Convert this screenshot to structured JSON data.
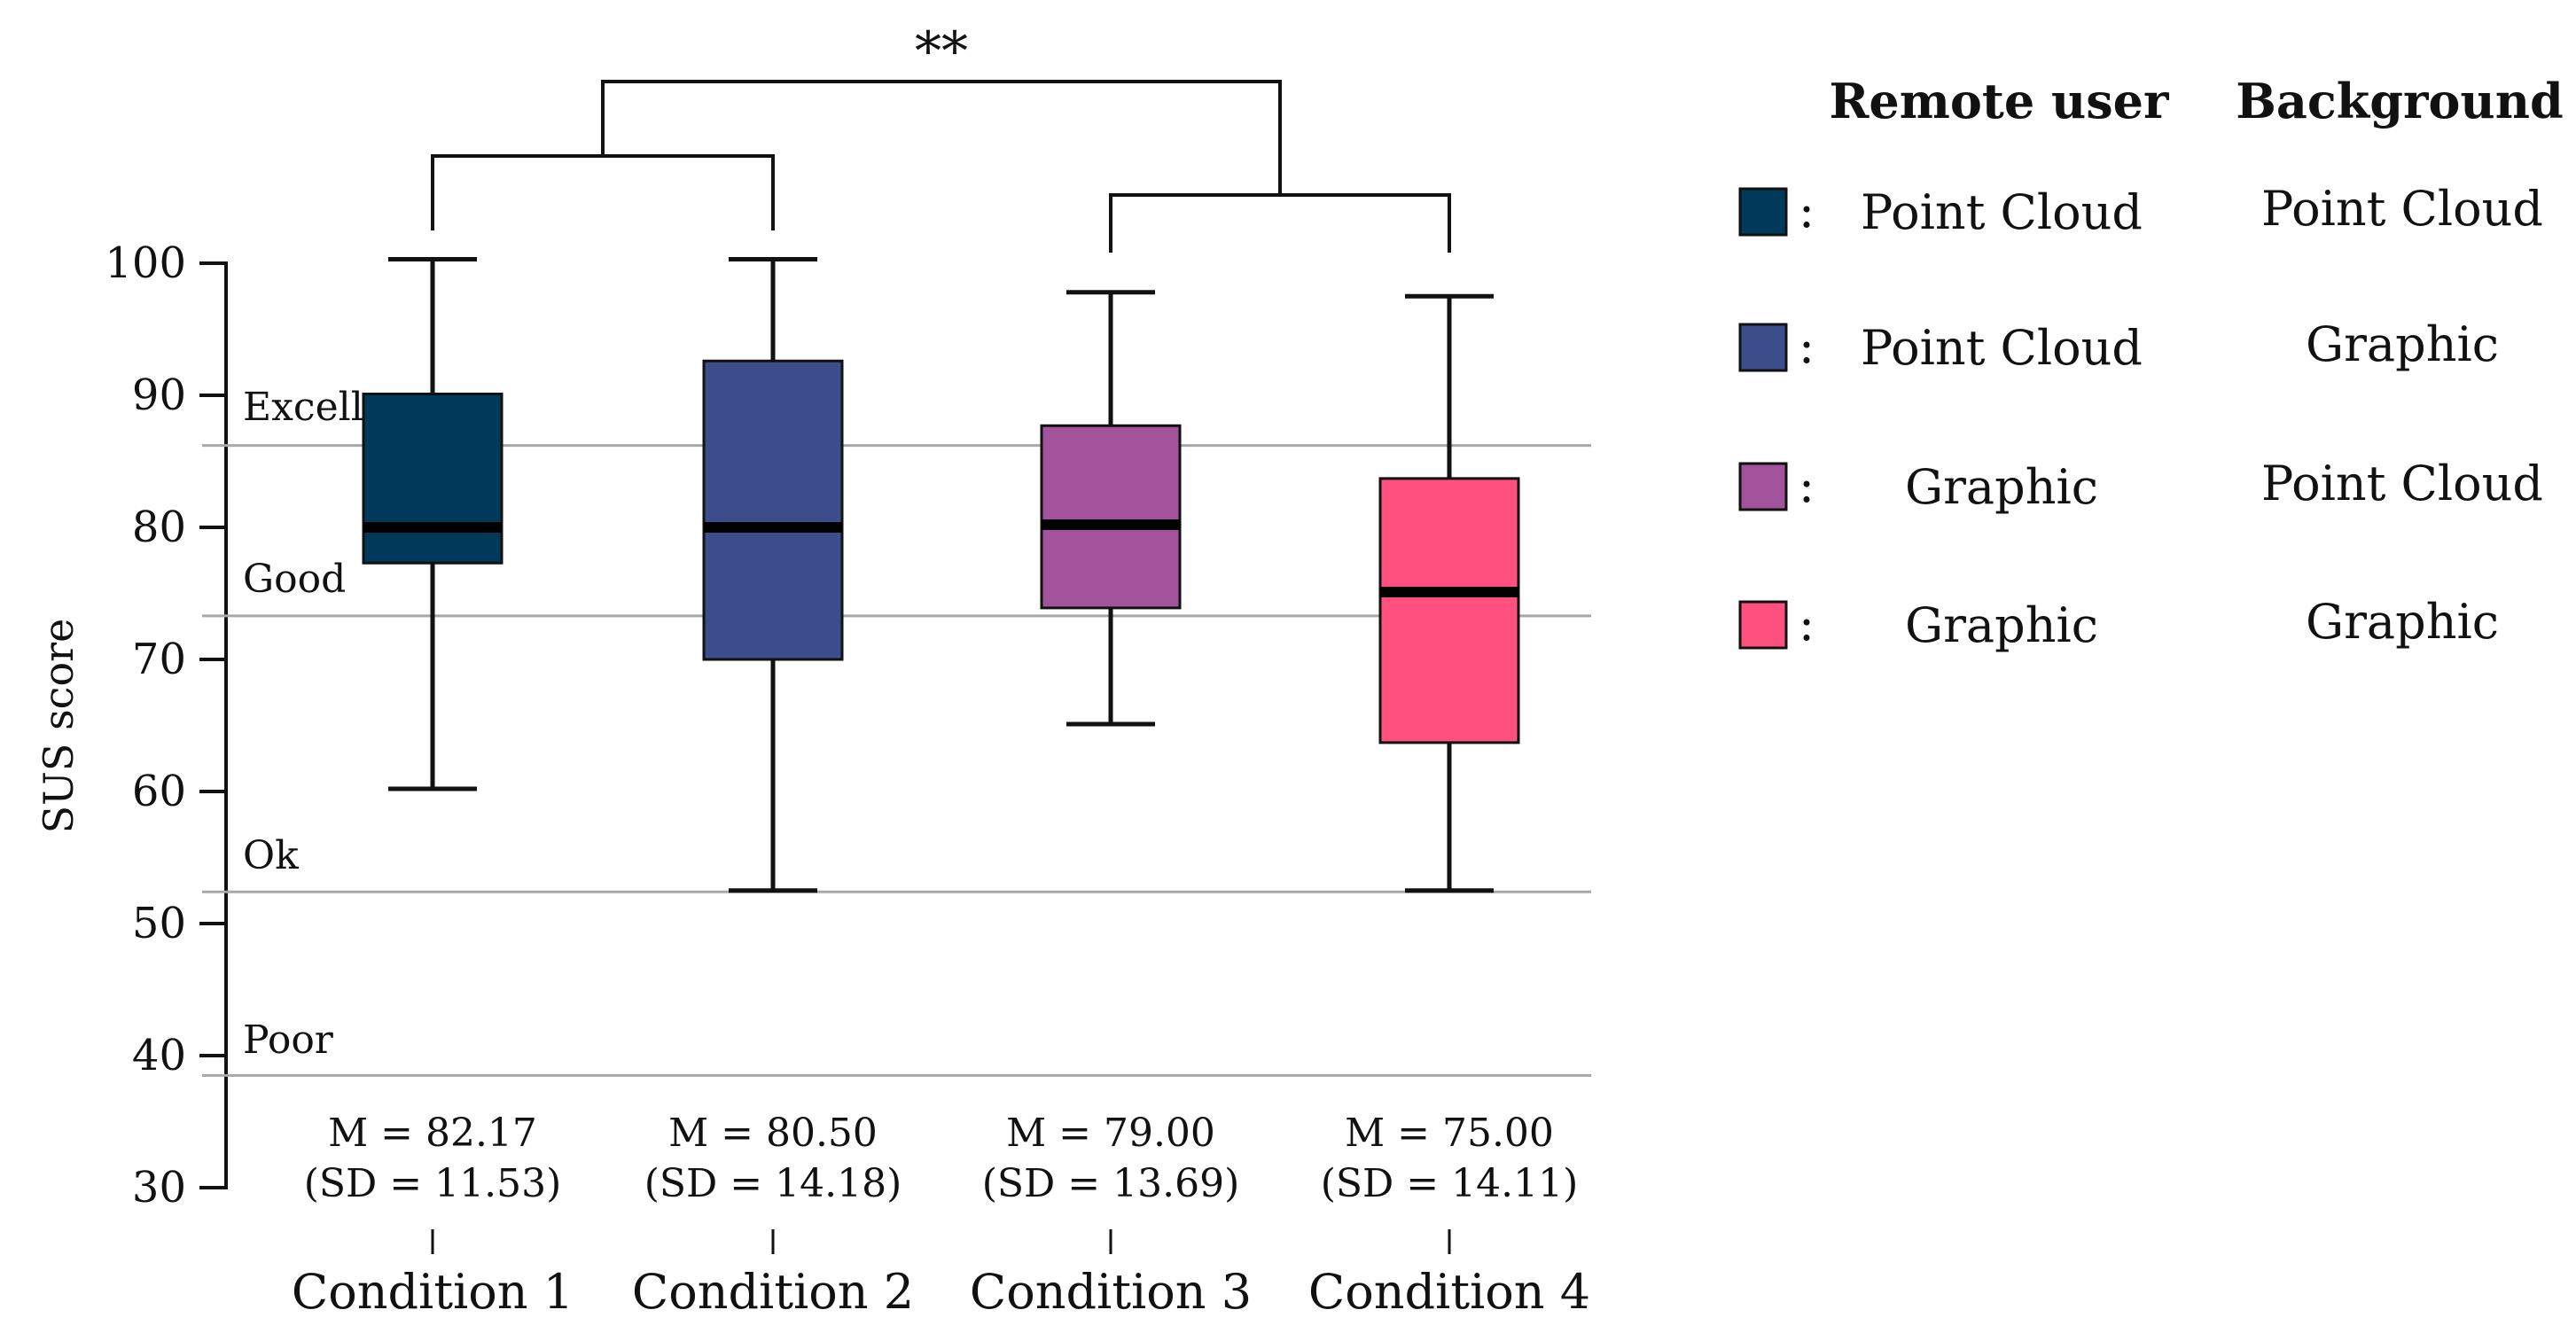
{
  "chart_data": {
    "type": "boxplot",
    "ylabel": "SUS score",
    "ylim": [
      30,
      100
    ],
    "yticks": [
      "30",
      "40",
      "50",
      "60",
      "70",
      "80",
      "90",
      "100"
    ],
    "bands": [
      {
        "label": "Excellent",
        "threshold": 86.2
      },
      {
        "label": "Good",
        "threshold": 73.3
      },
      {
        "label": "Ok",
        "threshold": 52.4
      },
      {
        "label": "Poor",
        "threshold": 38.5
      }
    ],
    "categories": [
      "Condition 1",
      "Condition 2",
      "Condition 3",
      "Condition 4"
    ],
    "boxes": [
      {
        "name": "Condition 1",
        "min": 60.2,
        "q1": 77.3,
        "median": 80,
        "q3": 90.1,
        "max": 100.3,
        "color": "#003a5a",
        "mean_text": "M = 82.17",
        "sd_text": "(SD = 11.53)"
      },
      {
        "name": "Condition 2",
        "min": 52.5,
        "q1": 70,
        "median": 80,
        "q3": 92.6,
        "max": 100.3,
        "color": "#3b4d8b",
        "mean_text": "M = 80.50",
        "sd_text": "(SD = 14.18)"
      },
      {
        "name": "Condition 3",
        "min": 65.1,
        "q1": 73.9,
        "median": 80.2,
        "q3": 87.7,
        "max": 97.8,
        "color": "#a3529c",
        "mean_text": "M = 79.00",
        "sd_text": "(SD = 13.69)"
      },
      {
        "name": "Condition 4",
        "min": 52.5,
        "q1": 63.7,
        "median": 75.1,
        "q3": 83.7,
        "max": 97.5,
        "color": "#ff5080",
        "mean_text": "M = 75.00",
        "sd_text": "(SD = 14.11)"
      }
    ],
    "significance": {
      "label": "**",
      "groups": [
        [
          1,
          2
        ],
        [
          3,
          4
        ]
      ]
    }
  },
  "legend": {
    "headers": {
      "remote_user": "Remote user",
      "background": "Background"
    },
    "separator": ":",
    "items": [
      {
        "color": "#003a5a",
        "remote_user": "Point Cloud",
        "background": "Point Cloud"
      },
      {
        "color": "#3b4d8b",
        "remote_user": "Point Cloud",
        "background": "Graphic"
      },
      {
        "color": "#a3529c",
        "remote_user": "Graphic",
        "background": "Point Cloud"
      },
      {
        "color": "#ff5080",
        "remote_user": "Graphic",
        "background": "Graphic"
      }
    ]
  }
}
